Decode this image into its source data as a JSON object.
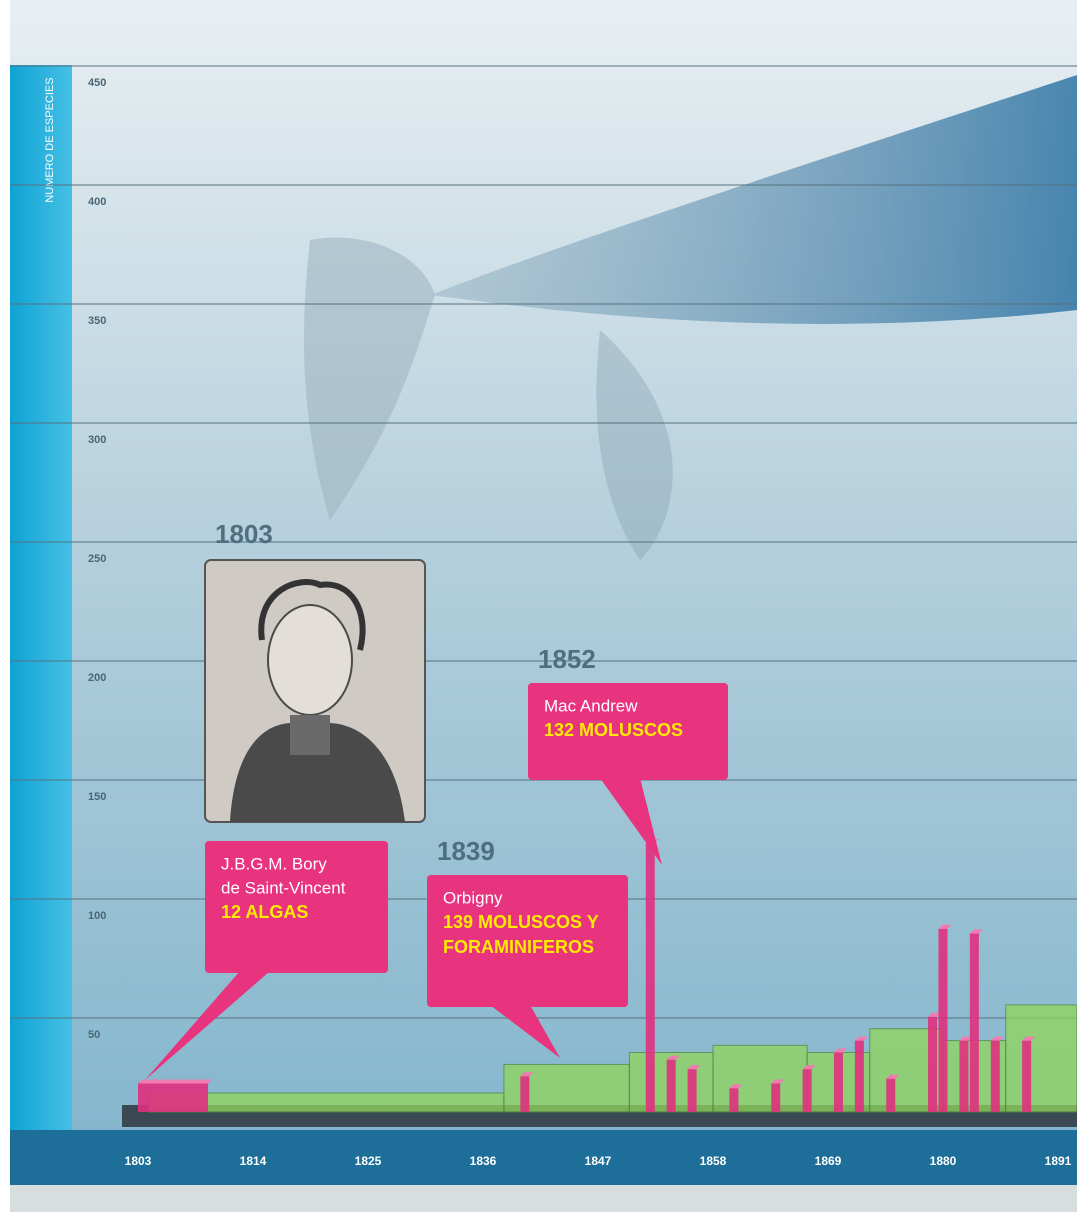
{
  "chart_data": {
    "type": "bar",
    "y_label": "NUMERO DE ESPECIES",
    "ylim": [
      0,
      450
    ],
    "yticks": [
      50,
      100,
      150,
      200,
      250,
      300,
      350,
      400,
      450
    ],
    "xlim": [
      1797,
      1894
    ],
    "xticks": [
      1803,
      1814,
      1825,
      1836,
      1847,
      1858,
      1869,
      1880,
      1891
    ],
    "series": [
      {
        "color": "#e0307f",
        "x": [
          1803,
          1840,
          1852,
          1854,
          1856,
          1860,
          1864,
          1867,
          1870,
          1872,
          1875,
          1879,
          1880,
          1882,
          1883,
          1885,
          1888
        ],
        "values": [
          12,
          15,
          113,
          22,
          18,
          10,
          12,
          18,
          25,
          30,
          14,
          40,
          77,
          30,
          75,
          30,
          30
        ]
      },
      {
        "color": "#8fd65a",
        "x": [
          1804,
          1838,
          1850,
          1858,
          1867,
          1873,
          1880,
          1886
        ],
        "values": [
          8,
          20,
          25,
          28,
          25,
          35,
          30,
          45
        ]
      }
    ],
    "annotations": [
      {
        "year": "1803",
        "name": [
          "J.B.G.M. Bory",
          "de Saint-Vincent"
        ],
        "detail": [
          "12 ALGAS"
        ]
      },
      {
        "year": "1839",
        "name": [
          "Orbigny"
        ],
        "detail": [
          "139 MOLUSCOS Y",
          "FORAMINIFEROS"
        ]
      },
      {
        "year": "1852",
        "name": [
          "Mac Andrew"
        ],
        "detail": [
          "132 MOLUSCOS"
        ]
      }
    ]
  }
}
